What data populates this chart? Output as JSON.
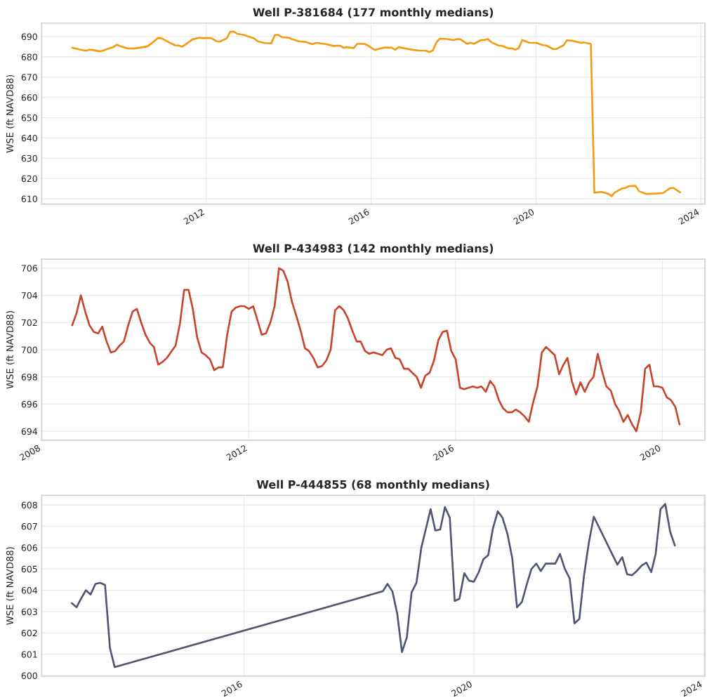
{
  "chart_data": [
    {
      "type": "line",
      "title": "Well P-381684 (177 monthly medians)",
      "ylabel": "WSE (ft NAVD88)",
      "color": "#f39c12",
      "grid": true,
      "xlim": [
        "2008-01-05",
        "2024-02-05"
      ],
      "xticks": [
        "2012",
        "2016",
        "2020",
        "2024"
      ],
      "ylim": [
        607.4,
        696.6
      ],
      "yticks": [
        610,
        620,
        630,
        640,
        650,
        660,
        670,
        680,
        690
      ],
      "x": [
        "2008-10",
        "2008-12",
        "2009-02",
        "2009-03",
        "2009-04",
        "2009-06",
        "2009-07",
        "2009-08",
        "2009-10",
        "2009-11",
        "2009-12",
        "2010-02",
        "2010-04",
        "2010-06",
        "2010-08",
        "2010-09",
        "2010-11",
        "2010-12",
        "2011-02",
        "2011-04",
        "2011-05",
        "2011-06",
        "2011-07",
        "2011-09",
        "2011-11",
        "2011-12",
        "2012-02",
        "2012-03",
        "2012-04",
        "2012-05",
        "2012-07",
        "2012-08",
        "2012-09",
        "2012-10",
        "2012-12",
        "2013-03",
        "2013-04",
        "2013-06",
        "2013-08",
        "2013-09",
        "2013-10",
        "2013-11",
        "2014-01",
        "2014-02",
        "2014-04",
        "2014-06",
        "2014-08",
        "2014-09",
        "2014-12",
        "2015-02",
        "2015-04",
        "2015-05",
        "2015-06",
        "2015-08",
        "2015-09",
        "2015-11",
        "2015-12",
        "2016-02",
        "2016-03",
        "2016-05",
        "2016-07",
        "2016-08",
        "2016-09",
        "2016-11",
        "2017-01",
        "2017-03",
        "2017-05",
        "2017-06",
        "2017-07",
        "2017-08",
        "2017-09",
        "2017-11",
        "2018-01",
        "2018-02",
        "2018-03",
        "2018-05",
        "2018-06",
        "2018-07",
        "2018-09",
        "2018-10",
        "2018-11",
        "2018-12",
        "2019-02",
        "2019-03",
        "2019-05",
        "2019-06",
        "2019-07",
        "2019-08",
        "2019-09",
        "2019-11",
        "2020-01",
        "2020-03",
        "2020-04",
        "2020-06",
        "2020-07",
        "2020-09",
        "2020-10",
        "2020-12",
        "2021-02",
        "2021-03",
        "2021-05",
        "2021-06",
        "2021-08",
        "2021-10",
        "2021-11",
        "2021-12",
        "2022-02",
        "2022-03",
        "2022-04",
        "2022-06",
        "2022-07",
        "2022-09",
        "2022-12",
        "2023-02",
        "2023-04",
        "2023-05",
        "2023-07"
      ],
      "values": [
        684.5,
        683.7,
        683.0,
        683.5,
        683.4,
        682.7,
        683.0,
        683.7,
        684.8,
        686.0,
        685.3,
        684.2,
        684.1,
        684.6,
        685.2,
        686.5,
        689.3,
        689.2,
        687.3,
        685.7,
        685.6,
        685.0,
        686.0,
        688.6,
        689.4,
        689.2,
        689.3,
        688.8,
        687.7,
        687.5,
        689.1,
        692.3,
        692.5,
        691.4,
        690.8,
        689.1,
        687.7,
        686.8,
        686.7,
        690.8,
        690.9,
        689.7,
        689.4,
        688.7,
        687.7,
        687.3,
        686.2,
        686.9,
        686.2,
        685.4,
        685.5,
        684.5,
        684.8,
        684.3,
        686.4,
        686.4,
        685.7,
        683.4,
        683.8,
        684.6,
        684.5,
        683.5,
        684.8,
        684.1,
        683.5,
        683.1,
        683.0,
        682.3,
        683.1,
        687.1,
        689.0,
        688.8,
        688.2,
        688.8,
        688.7,
        686.4,
        687.0,
        686.4,
        688.3,
        688.3,
        688.8,
        687.2,
        685.6,
        685.5,
        684.2,
        684.2,
        683.5,
        684.3,
        688.3,
        687.0,
        686.9,
        685.8,
        685.6,
        683.8,
        683.9,
        685.7,
        688.2,
        687.8,
        686.9,
        687.1,
        686.4,
        613.0,
        613.4,
        612.5,
        611.3,
        613.2,
        615.1,
        615.3,
        616.2,
        616.4,
        613.8,
        612.4,
        612.6,
        612.9,
        615.2,
        615.4,
        613.2
      ]
    },
    {
      "type": "line",
      "title": "Well P-434983 (142 monthly medians)",
      "ylabel": "WSE (ft NAVD88)",
      "color": "#c8452c",
      "grid": true,
      "xlim": [
        "2007-12-29",
        "2020-10-27"
      ],
      "xticks": [
        "2008",
        "2012",
        "2016",
        "2020"
      ],
      "ylim": [
        693.35,
        706.65
      ],
      "yticks": [
        694,
        696,
        698,
        700,
        702,
        704,
        706
      ],
      "x": [
        "2008-08",
        "2008-09",
        "2008-10",
        "2008-11",
        "2008-12",
        "2009-01",
        "2009-02",
        "2009-03",
        "2009-04",
        "2009-05",
        "2009-06",
        "2009-07",
        "2009-08",
        "2009-09",
        "2009-10",
        "2009-11",
        "2009-12",
        "2010-01",
        "2010-02",
        "2010-03",
        "2010-04",
        "2010-05",
        "2010-06",
        "2010-08",
        "2010-09",
        "2010-10",
        "2010-11",
        "2010-12",
        "2011-01",
        "2011-02",
        "2011-03",
        "2011-04",
        "2011-05",
        "2011-06",
        "2011-07",
        "2011-08",
        "2011-09",
        "2011-10",
        "2011-11",
        "2011-12",
        "2012-01",
        "2012-02",
        "2012-03",
        "2012-04",
        "2012-05",
        "2012-06",
        "2012-07",
        "2012-08",
        "2012-09",
        "2012-10",
        "2012-11",
        "2012-12",
        "2013-01",
        "2013-02",
        "2013-03",
        "2013-04",
        "2013-05",
        "2013-06",
        "2013-07",
        "2013-08",
        "2013-09",
        "2013-10",
        "2013-11",
        "2013-12",
        "2014-01",
        "2014-02",
        "2014-03",
        "2014-04",
        "2014-05",
        "2014-06",
        "2014-07",
        "2014-08",
        "2014-09",
        "2014-10",
        "2014-11",
        "2014-12",
        "2015-01",
        "2015-02",
        "2015-03",
        "2015-04",
        "2015-05",
        "2015-06",
        "2015-07",
        "2015-08",
        "2015-09",
        "2015-10",
        "2015-11",
        "2015-12",
        "2016-01",
        "2016-02",
        "2016-03",
        "2016-04",
        "2016-05",
        "2016-06",
        "2016-07",
        "2016-08",
        "2016-09",
        "2016-10",
        "2016-11",
        "2016-12",
        "2017-01",
        "2017-02",
        "2017-03",
        "2017-04",
        "2017-05",
        "2017-06",
        "2017-07",
        "2017-08",
        "2017-09",
        "2017-10",
        "2017-11",
        "2017-12",
        "2018-01",
        "2018-02",
        "2018-03",
        "2018-04",
        "2018-05",
        "2018-06",
        "2018-07",
        "2018-08",
        "2018-09",
        "2018-10",
        "2018-11",
        "2018-12",
        "2019-01",
        "2019-02",
        "2019-03",
        "2019-04",
        "2019-05",
        "2019-06",
        "2019-07",
        "2019-08",
        "2019-09",
        "2019-10",
        "2019-11",
        "2019-12",
        "2020-01",
        "2020-02",
        "2020-03",
        "2020-04",
        "2020-05"
      ],
      "values": [
        701.8,
        702.7,
        704.0,
        702.8,
        701.8,
        701.3,
        701.2,
        701.7,
        700.6,
        699.8,
        699.9,
        700.3,
        700.6,
        701.8,
        702.8,
        703.0,
        702.0,
        701.1,
        700.5,
        700.2,
        698.9,
        699.1,
        699.4,
        700.3,
        701.9,
        704.4,
        704.4,
        703.0,
        700.9,
        699.8,
        699.6,
        699.3,
        698.5,
        698.7,
        698.7,
        701.1,
        702.8,
        703.1,
        703.2,
        703.2,
        703.0,
        703.2,
        702.2,
        701.1,
        701.2,
        702.0,
        703.2,
        706.0,
        705.8,
        705.0,
        703.5,
        702.5,
        701.4,
        700.1,
        699.9,
        699.4,
        698.7,
        698.8,
        699.2,
        700.0,
        702.9,
        703.2,
        702.9,
        702.3,
        701.4,
        700.6,
        700.6,
        699.9,
        699.7,
        699.8,
        699.7,
        699.6,
        700.0,
        700.1,
        699.4,
        699.3,
        698.6,
        698.6,
        698.3,
        698.0,
        697.2,
        698.1,
        698.3,
        699.2,
        700.7,
        701.3,
        701.4,
        699.9,
        699.3,
        697.2,
        697.1,
        697.2,
        697.3,
        697.2,
        697.3,
        696.9,
        697.7,
        697.3,
        696.3,
        695.7,
        695.4,
        695.4,
        695.6,
        695.4,
        695.1,
        694.7,
        696.1,
        697.3,
        699.8,
        700.2,
        699.9,
        699.6,
        698.2,
        698.9,
        699.4,
        697.7,
        696.7,
        697.6,
        696.9,
        697.6,
        698.0,
        699.7,
        698.4,
        697.3,
        697.0,
        696.0,
        695.5,
        694.7,
        695.2,
        694.5,
        694.0,
        695.4,
        698.6,
        698.9,
        697.3,
        697.3,
        697.2,
        696.5,
        696.3,
        695.8,
        694.5
      ]
    },
    {
      "type": "line",
      "title": "Well P-444855 (68 monthly medians)",
      "ylabel": "WSE (ft NAVD88)",
      "color": "#505572",
      "grid": true,
      "xlim": [
        "2012-06-24",
        "2024-01-08"
      ],
      "xticks": [
        "2016",
        "2020",
        "2024"
      ],
      "ylim": [
        599.97,
        608.45
      ],
      "yticks": [
        600,
        601,
        602,
        603,
        604,
        605,
        606,
        607,
        608
      ],
      "x": [
        "2013-01",
        "2013-02",
        "2013-03",
        "2013-04",
        "2013-05",
        "2013-06",
        "2013-07",
        "2013-08",
        "2013-09",
        "2013-10",
        "2018-06",
        "2018-07",
        "2018-08",
        "2018-09",
        "2018-10",
        "2018-11",
        "2018-12",
        "2019-01",
        "2019-02",
        "2019-03",
        "2019-04",
        "2019-05",
        "2019-06",
        "2019-07",
        "2019-08",
        "2019-09",
        "2019-10",
        "2019-11",
        "2019-12",
        "2020-01",
        "2020-02",
        "2020-03",
        "2020-04",
        "2020-05",
        "2020-06",
        "2020-07",
        "2020-08",
        "2020-09",
        "2020-10",
        "2020-11",
        "2020-12",
        "2021-01",
        "2021-02",
        "2021-03",
        "2021-04",
        "2021-05",
        "2021-06",
        "2021-07",
        "2021-08",
        "2021-09",
        "2021-10",
        "2021-11",
        "2021-12",
        "2022-01",
        "2022-02",
        "2022-07",
        "2022-08",
        "2022-09",
        "2022-10",
        "2022-11",
        "2022-12",
        "2023-01",
        "2023-02",
        "2023-03",
        "2023-04",
        "2023-05",
        "2023-06",
        "2023-07"
      ],
      "values": [
        603.4,
        603.2,
        603.6,
        604.0,
        603.8,
        604.3,
        604.35,
        604.25,
        601.3,
        600.4,
        603.95,
        604.3,
        603.95,
        602.9,
        601.1,
        601.8,
        603.9,
        604.35,
        606.0,
        606.85,
        607.8,
        606.8,
        606.85,
        607.9,
        607.4,
        603.5,
        603.6,
        604.8,
        604.45,
        604.4,
        604.85,
        605.45,
        605.65,
        606.9,
        607.7,
        607.4,
        606.65,
        605.5,
        603.2,
        603.45,
        604.25,
        605.0,
        605.25,
        604.9,
        605.25,
        605.25,
        605.25,
        605.7,
        605.0,
        604.55,
        602.45,
        602.65,
        604.7,
        606.25,
        607.45,
        605.2,
        605.55,
        604.75,
        604.7,
        604.9,
        605.15,
        605.3,
        604.85,
        605.7,
        607.8,
        608.05,
        606.75,
        606.1
      ]
    }
  ]
}
